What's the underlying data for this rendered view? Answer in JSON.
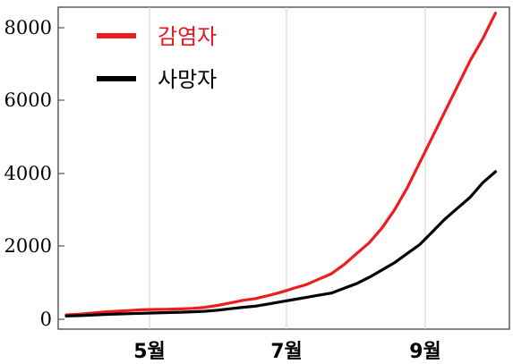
{
  "chart_data": {
    "type": "line",
    "x_ticks": [
      "5월",
      "7월",
      "9월"
    ],
    "y_ticks": [
      "0",
      "2000",
      "4000",
      "6000",
      "8000"
    ],
    "ylim": [
      0,
      8600
    ],
    "grid": "vertical",
    "legend_position": "top-left",
    "series": [
      {
        "name": "감염자",
        "color": "#ee1c1c",
        "label_color": "#e8141b",
        "points": [
          [
            "3/25",
            120
          ],
          [
            "4/1",
            140
          ],
          [
            "4/8",
            170
          ],
          [
            "4/15",
            200
          ],
          [
            "4/22",
            220
          ],
          [
            "4/29",
            240
          ],
          [
            "5/6",
            260
          ],
          [
            "5/13",
            270
          ],
          [
            "5/20",
            275
          ],
          [
            "5/27",
            285
          ],
          [
            "6/3",
            300
          ],
          [
            "6/10",
            330
          ],
          [
            "6/17",
            380
          ],
          [
            "6/24",
            450
          ],
          [
            "7/1",
            520
          ],
          [
            "7/8",
            570
          ],
          [
            "7/15",
            650
          ],
          [
            "7/22",
            740
          ],
          [
            "7/29",
            850
          ],
          [
            "8/5",
            950
          ],
          [
            "8/12",
            1100
          ],
          [
            "8/19",
            1250
          ],
          [
            "8/26",
            1500
          ],
          [
            "9/2",
            1800
          ],
          [
            "9/9",
            2100
          ],
          [
            "9/16",
            2500
          ],
          [
            "9/23",
            3000
          ],
          [
            "9/30",
            3600
          ],
          [
            "10/7",
            4300
          ],
          [
            "10/14",
            5000
          ],
          [
            "10/21",
            5700
          ],
          [
            "10/28",
            6400
          ],
          [
            "11/4",
            7100
          ],
          [
            "11/11",
            7700
          ],
          [
            "11/18",
            8400
          ]
        ]
      },
      {
        "name": "사망자",
        "color": "#000000",
        "label_color": "#000000",
        "points": [
          [
            "3/25",
            90
          ],
          [
            "4/1",
            100
          ],
          [
            "4/8",
            115
          ],
          [
            "4/15",
            130
          ],
          [
            "4/22",
            145
          ],
          [
            "4/29",
            155
          ],
          [
            "5/6",
            165
          ],
          [
            "5/13",
            175
          ],
          [
            "5/20",
            185
          ],
          [
            "5/27",
            195
          ],
          [
            "6/3",
            205
          ],
          [
            "6/10",
            220
          ],
          [
            "6/17",
            250
          ],
          [
            "6/24",
            290
          ],
          [
            "7/1",
            330
          ],
          [
            "7/8",
            360
          ],
          [
            "7/15",
            420
          ],
          [
            "7/22",
            480
          ],
          [
            "7/29",
            540
          ],
          [
            "8/5",
            600
          ],
          [
            "8/12",
            660
          ],
          [
            "8/19",
            720
          ],
          [
            "8/26",
            850
          ],
          [
            "9/2",
            980
          ],
          [
            "9/9",
            1150
          ],
          [
            "9/16",
            1350
          ],
          [
            "9/23",
            1550
          ],
          [
            "9/30",
            1800
          ],
          [
            "10/7",
            2050
          ],
          [
            "10/14",
            2400
          ],
          [
            "10/21",
            2750
          ],
          [
            "10/28",
            3050
          ],
          [
            "11/4",
            3350
          ],
          [
            "11/11",
            3750
          ],
          [
            "11/18",
            4050
          ]
        ]
      }
    ]
  }
}
